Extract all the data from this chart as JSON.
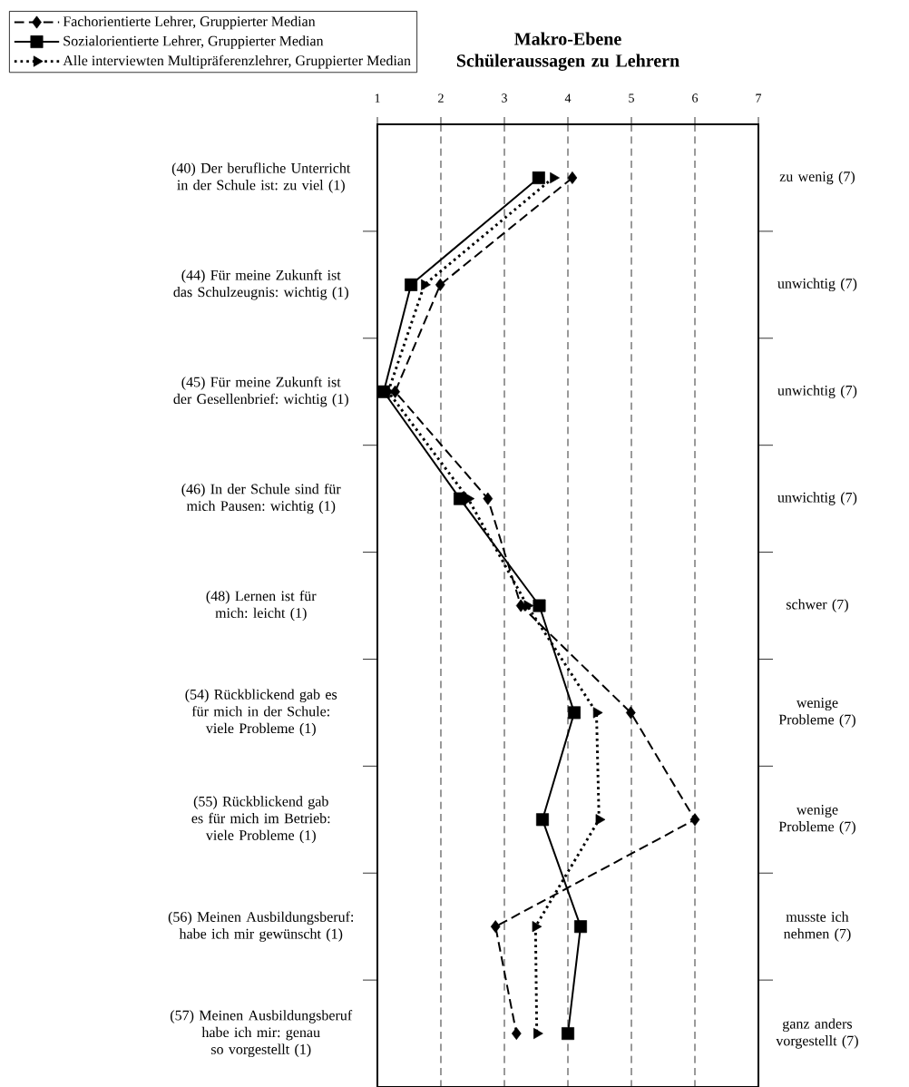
{
  "chart_data": {
    "type": "line",
    "title": "Makro-Ebene Schüleraussagen zu Lehrern",
    "orientation": "horizontal",
    "categories": [
      "(40) Der berufliche Unterricht in der Schule ist: zu viel (1)",
      "(44) Für meine Zukunft ist das Schulzeugnis: wichtig (1)",
      "(45) Für meine Zukunft ist der Gesellenbrief: wichtig (1)",
      "(46) In der Schule sind für mich Pausen: wichtig (1)",
      "(48) Lernen ist für mich: leicht (1)",
      "(54) Rückblickend gab es für mich in der Schule: viele Probleme (1)",
      "(55) Rückblickend gab es für mich im Betrieb: viele Probleme (1)",
      "(56) Meinen Ausbildungsberuf: habe ich mir gewünscht (1)",
      "(57) Meinen Ausbildungsberuf habe ich mir: genau so vorgestellt (1)"
    ],
    "y2_categories": [
      "zu wenig (7)",
      "unwichtig (7)",
      "unwichtig (7)",
      "unwichtig (7)",
      "schwer (7)",
      "wenige Probleme (7)",
      "wenige Probleme (7)",
      "musste ich nehmen (7)",
      "ganz anders vorgestellt (7)"
    ],
    "series": [
      {
        "name": "Fachorientierte Lehrer, Gruppierter Median",
        "color": "#000000",
        "marker": "diamond",
        "line_style": "dashed",
        "values": [
          4.07,
          1.99,
          1.28,
          2.74,
          3.26,
          4.99,
          6.0,
          2.86,
          3.19
        ]
      },
      {
        "name": "Sozialorientierte Lehrer, Gruppierter Median",
        "color": "#000000",
        "marker": "square",
        "line_style": "solid",
        "values": [
          3.54,
          1.53,
          1.1,
          2.3,
          3.55,
          4.1,
          3.6,
          4.2,
          4.0
        ]
      },
      {
        "name": "Alle interviewten Multipräferenzlehrer, Gruppierter Median",
        "color": "#000000",
        "marker": "triangle",
        "line_style": "dotted",
        "values": [
          3.77,
          1.74,
          1.17,
          2.43,
          3.36,
          4.45,
          4.49,
          3.49,
          3.51
        ]
      }
    ],
    "xlim": [
      1,
      7
    ],
    "xticks": [
      1,
      2,
      3,
      4,
      5,
      6,
      7
    ],
    "grid": "x",
    "legend": "top left"
  }
}
